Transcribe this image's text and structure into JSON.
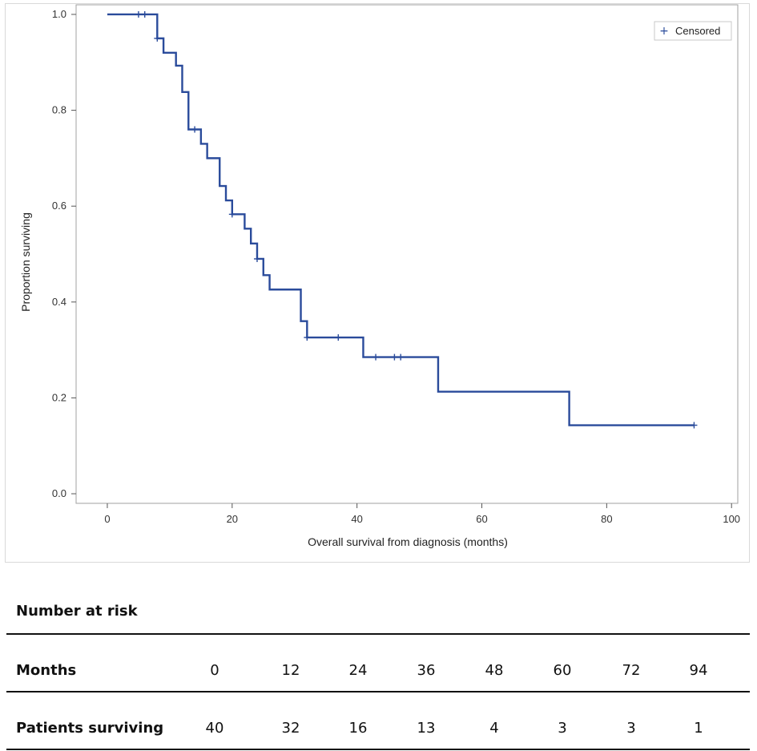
{
  "chart_data": {
    "type": "line",
    "title": "",
    "xlabel": "Overall survival from diagnosis (months)",
    "ylabel": "Proportion surviving",
    "xlim": [
      -5,
      101
    ],
    "ylim": [
      -0.02,
      1.02
    ],
    "xticks": [
      0,
      20,
      40,
      60,
      80,
      100
    ],
    "yticks": [
      "0.0",
      "0.2",
      "0.4",
      "0.6",
      "0.8",
      "1.0"
    ],
    "grid": false,
    "legend": {
      "position": "top-right",
      "entries": [
        {
          "symbol": "+",
          "label": "Censored"
        }
      ]
    },
    "series": [
      {
        "name": "Overall survival",
        "color": "#2a4b9b",
        "step_points": [
          {
            "x": 0,
            "y": 1.0
          },
          {
            "x": 8,
            "y": 0.95
          },
          {
            "x": 9,
            "y": 0.92
          },
          {
            "x": 11,
            "y": 0.893
          },
          {
            "x": 12,
            "y": 0.838
          },
          {
            "x": 13,
            "y": 0.76
          },
          {
            "x": 15,
            "y": 0.73
          },
          {
            "x": 16,
            "y": 0.7
          },
          {
            "x": 18,
            "y": 0.642
          },
          {
            "x": 19,
            "y": 0.612
          },
          {
            "x": 20,
            "y": 0.583
          },
          {
            "x": 22,
            "y": 0.553
          },
          {
            "x": 23,
            "y": 0.522
          },
          {
            "x": 24,
            "y": 0.49
          },
          {
            "x": 25,
            "y": 0.456
          },
          {
            "x": 26,
            "y": 0.426
          },
          {
            "x": 31,
            "y": 0.36
          },
          {
            "x": 32,
            "y": 0.326
          },
          {
            "x": 41,
            "y": 0.285
          },
          {
            "x": 53,
            "y": 0.213
          },
          {
            "x": 74,
            "y": 0.143
          },
          {
            "x": 94,
            "y": 0.143
          }
        ],
        "censored": [
          {
            "x": 5,
            "y": 1.0
          },
          {
            "x": 6,
            "y": 1.0
          },
          {
            "x": 8,
            "y": 0.95
          },
          {
            "x": 14,
            "y": 0.76
          },
          {
            "x": 20,
            "y": 0.583
          },
          {
            "x": 24,
            "y": 0.49
          },
          {
            "x": 32,
            "y": 0.326
          },
          {
            "x": 37,
            "y": 0.326
          },
          {
            "x": 43,
            "y": 0.285
          },
          {
            "x": 46,
            "y": 0.285
          },
          {
            "x": 47,
            "y": 0.285
          },
          {
            "x": 94,
            "y": 0.143
          }
        ]
      }
    ],
    "risk_table": {
      "title": "Number at risk",
      "header_label": "Months",
      "months": [
        "0",
        "12",
        "24",
        "36",
        "48",
        "60",
        "72",
        "94"
      ],
      "row_label": "Patients surviving",
      "patients": [
        "40",
        "32",
        "16",
        "13",
        "4",
        "3",
        "3",
        "1"
      ]
    }
  }
}
